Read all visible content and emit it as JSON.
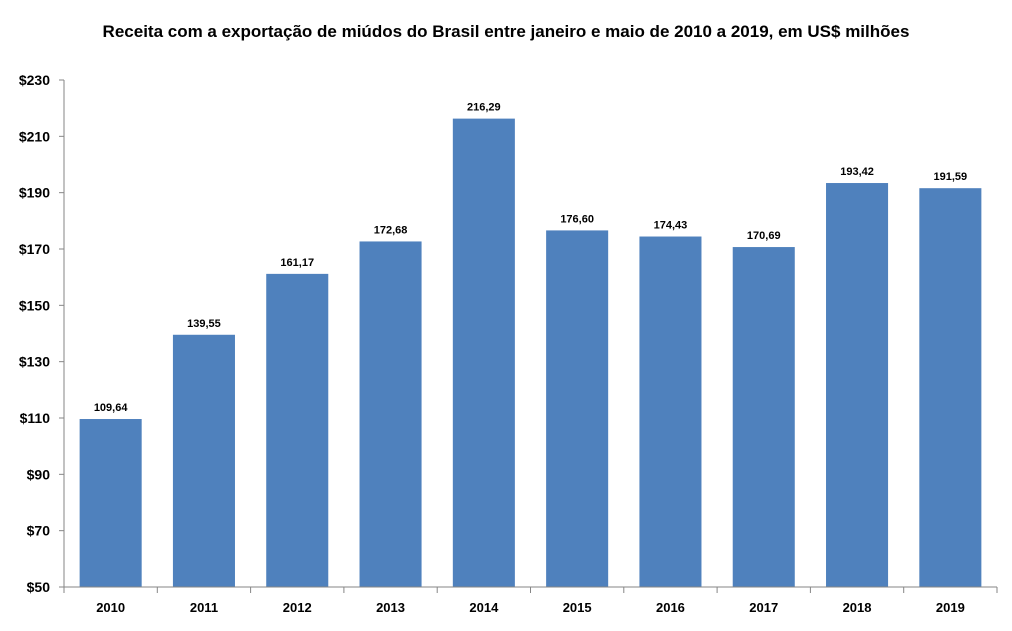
{
  "chart_data": {
    "type": "bar",
    "title": "Receita com a exportação de miúdos do Brasil entre janeiro e maio de 2010 a 2019, em US$ milhões",
    "xlabel": "",
    "ylabel": "",
    "categories": [
      "2010",
      "2011",
      "2012",
      "2013",
      "2014",
      "2015",
      "2016",
      "2017",
      "2018",
      "2019"
    ],
    "values": [
      109.64,
      139.55,
      161.17,
      172.68,
      216.29,
      176.6,
      174.43,
      170.69,
      193.42,
      191.59
    ],
    "value_labels": [
      "109,64",
      "139,55",
      "161,17",
      "172,68",
      "216,29",
      "176,60",
      "174,43",
      "170,69",
      "193,42",
      "191,59"
    ],
    "ylim": [
      50,
      230
    ],
    "yticks": [
      50,
      70,
      90,
      110,
      130,
      150,
      170,
      190,
      210,
      230
    ],
    "ytick_labels": [
      "$50",
      "$70",
      "$90",
      "$110",
      "$130",
      "$150",
      "$170",
      "$190",
      "$210",
      "$230"
    ],
    "bar_color": "#4f81bd",
    "axis_color": "#868686",
    "grid": false,
    "legend": "none"
  }
}
